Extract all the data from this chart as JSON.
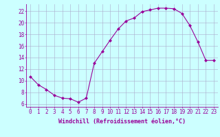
{
  "x": [
    0,
    1,
    2,
    3,
    4,
    5,
    6,
    7,
    8,
    9,
    10,
    11,
    12,
    13,
    14,
    15,
    16,
    17,
    18,
    19,
    20,
    21,
    22,
    23
  ],
  "y": [
    10.7,
    9.3,
    8.5,
    7.5,
    7.0,
    6.9,
    6.3,
    7.0,
    13.0,
    15.0,
    17.0,
    18.9,
    20.3,
    20.8,
    21.9,
    22.2,
    22.5,
    22.5,
    22.4,
    21.6,
    19.5,
    16.7,
    13.5,
    13.5
  ],
  "xlim": [
    -0.5,
    23.5
  ],
  "ylim": [
    5.5,
    23.2
  ],
  "yticks": [
    6,
    8,
    10,
    12,
    14,
    16,
    18,
    20,
    22
  ],
  "xticks": [
    0,
    1,
    2,
    3,
    4,
    5,
    6,
    7,
    8,
    9,
    10,
    11,
    12,
    13,
    14,
    15,
    16,
    17,
    18,
    19,
    20,
    21,
    22,
    23
  ],
  "xlabel": "Windchill (Refroidissement éolien,°C)",
  "line_color": "#990099",
  "marker": "D",
  "marker_size": 2,
  "bg_color": "#ccffff",
  "grid_color": "#aaaacc",
  "label_fontsize": 6,
  "tick_fontsize": 5.5
}
